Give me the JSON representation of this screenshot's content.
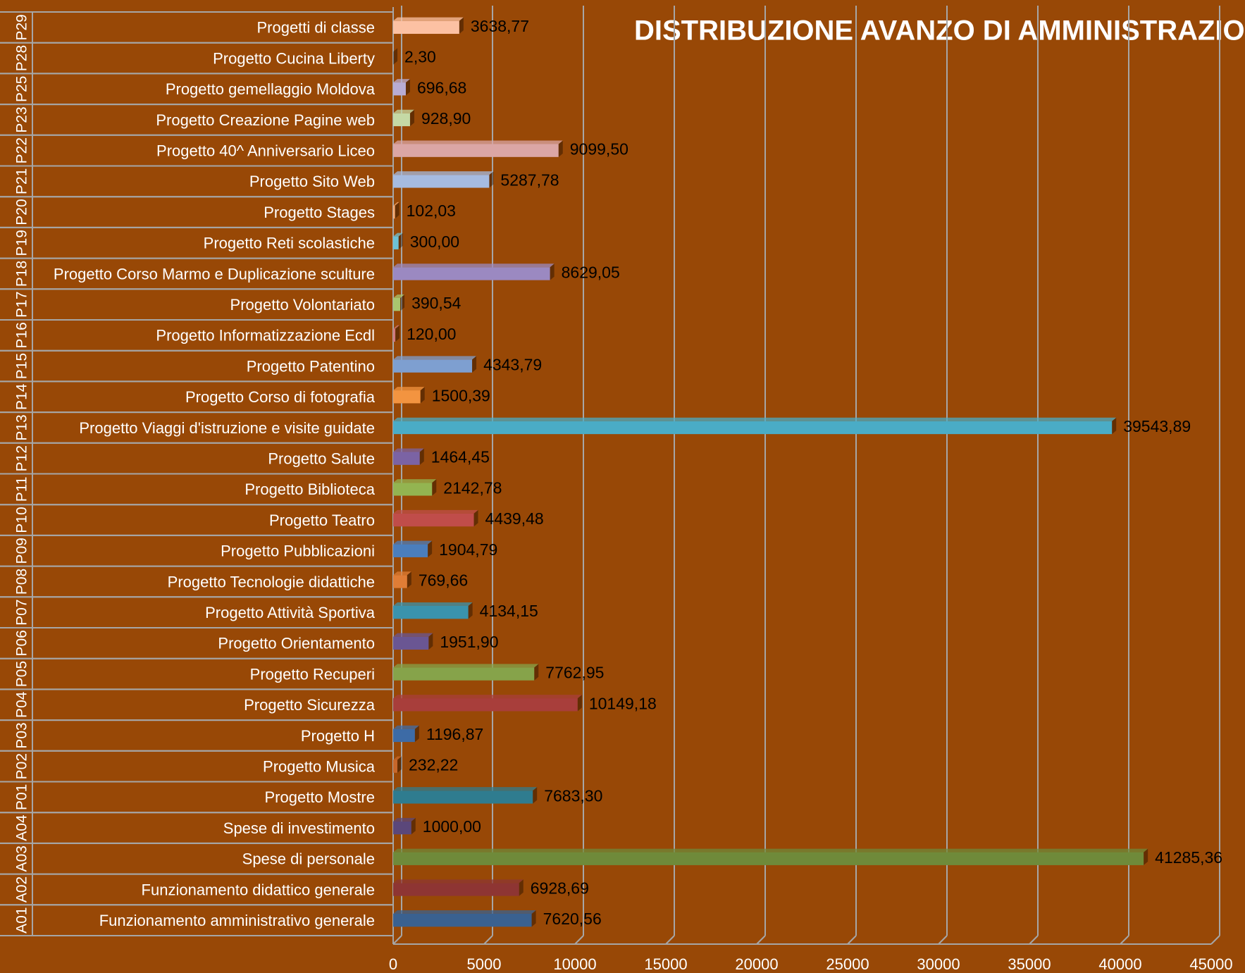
{
  "chart_data": {
    "type": "bar",
    "orientation": "horizontal",
    "title": "DISTRIBUZIONE AVANZO DI AMMINISTRAZIO",
    "codes": [
      "A01",
      "A02",
      "A03",
      "A04",
      "P01",
      "P02",
      "P03",
      "P04",
      "P05",
      "P06",
      "P07",
      "P08",
      "P09",
      "P10",
      "P11",
      "P12",
      "P13",
      "P14",
      "P15",
      "P16",
      "P17",
      "P18",
      "P19",
      "P20",
      "P21",
      "P22",
      "P23",
      "P25",
      "P28",
      "P29"
    ],
    "categories": [
      "Funzionamento amministrativo generale",
      "Funzionamento didattico generale",
      "Spese di personale",
      "Spese di investimento",
      "Progetto Mostre",
      "Progetto Musica",
      "Progetto H",
      "Progetto Sicurezza",
      "Progetto Recuperi",
      "Progetto Orientamento",
      "Progetto Attività Sportiva",
      "Progetto Tecnologie didattiche",
      "Progetto Pubblicazioni",
      "Progetto Teatro",
      "Progetto Biblioteca",
      "Progetto Salute",
      "Progetto Viaggi d'istruzione e visite guidate",
      "Progetto Corso di fotografia",
      "Progetto Patentino",
      "Progetto Informatizzazione Ecdl",
      "Progetto Volontariato",
      "Progetto Corso Marmo e Duplicazione sculture",
      "Progetto Reti scolastiche",
      "Progetto Stages",
      "Progetto Sito Web",
      "Progetto 40^ Anniversario Liceo",
      "Progetto Creazione Pagine web",
      "Progetto gemellaggio Moldova",
      "Progetto Cucina Liberty",
      "Progetti di classe"
    ],
    "values": [
      7620.56,
      6928.69,
      41285.36,
      1000.0,
      7683.3,
      232.22,
      1196.87,
      10149.18,
      7762.95,
      1951.9,
      4134.15,
      769.66,
      1904.79,
      4439.48,
      2142.78,
      1464.45,
      39543.89,
      1500.39,
      4343.79,
      120.0,
      390.54,
      8629.05,
      300.0,
      102.03,
      5287.78,
      9099.5,
      928.9,
      696.68,
      2.3,
      3638.77
    ],
    "value_labels": [
      "7620,56",
      "6928,69",
      "41285,36",
      "1000,00",
      "7683,30",
      "232,22",
      "1196,87",
      "10149,18",
      "7762,95",
      "1951,90",
      "4134,15",
      "769,66",
      "1904,79",
      "4439,48",
      "2142,78",
      "1464,45",
      "39543,89",
      "1500,39",
      "4343,79",
      "120,00",
      "390,54",
      "8629,05",
      "300,00",
      "102,03",
      "5287,78",
      "9099,50",
      "928,90",
      "696,68",
      "2,30",
      "3638,77"
    ],
    "colors": [
      "#3a6190",
      "#8e3533",
      "#6f8a3a",
      "#5b477a",
      "#2f7c8f",
      "#c7672a",
      "#3d6ba6",
      "#a83e3b",
      "#86a34a",
      "#6a5693",
      "#3a93ad",
      "#e07d36",
      "#4a7ebd",
      "#c04d4a",
      "#93b451",
      "#7b63a4",
      "#4aacc6",
      "#f39440",
      "#7e9fd0",
      "#d0787a",
      "#a9c66e",
      "#9b89c1",
      "#6dc1d6",
      "#f8ab72",
      "#a6bbe0",
      "#dba6a5",
      "#c5d9a5",
      "#b8acd4",
      "#3d8c9a",
      "#fcc1a3"
    ],
    "xlim": [
      0,
      45000
    ],
    "xticks": [
      0,
      5000,
      10000,
      15000,
      20000,
      25000,
      30000,
      35000,
      40000,
      45000
    ],
    "grid": true
  }
}
